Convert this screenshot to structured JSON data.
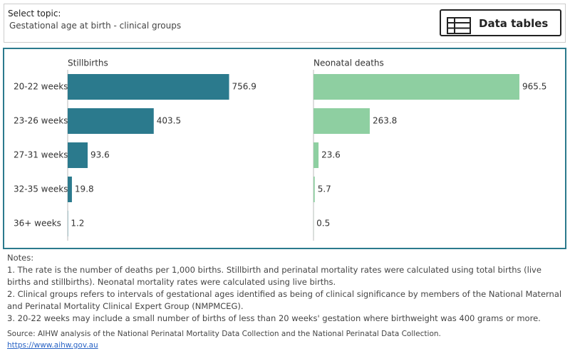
{
  "selector": {
    "label": "Select topic:",
    "value": "Gestational age at birth - clinical groups"
  },
  "button": {
    "label": "Data tables"
  },
  "chart_data": [
    {
      "type": "bar",
      "orientation": "horizontal",
      "title": "Stillbirths",
      "color": "#2b7a8d",
      "categories": [
        "20-22 weeks",
        "23-26 weeks",
        "27-31 weeks",
        "32-35 weeks",
        "36+ weeks"
      ],
      "values": [
        756.9,
        403.5,
        93.6,
        19.8,
        1.2
      ]
    },
    {
      "type": "bar",
      "orientation": "horizontal",
      "title": "Neonatal deaths",
      "color": "#8ecfa1",
      "values": [
        965.5,
        263.8,
        23.6,
        5.7,
        0.5
      ]
    }
  ],
  "notes": {
    "heading": "Notes:",
    "items": [
      "1. The rate is the number of deaths per 1,000 births. Stillbirth and perinatal mortality rates were calculated using total births (live births and stillbirths). Neonatal mortality rates were calculated using live births.",
      "2. Clinical groups refers to intervals of gestational ages identified as being of clinical significance by members of the National Maternal and Perinatal Mortality Clinical Expert Group (NMPMCEG).",
      "3. 20-22 weeks may include a small number of births of less than 20 weeks' gestation where birthweight was 400 grams or more."
    ]
  },
  "source": {
    "text": "Source: AIHW analysis of the National Perinatal Mortality Data Collection and the National Perinatal Data Collection.",
    "link": "https://www.aihw.gov.au"
  }
}
